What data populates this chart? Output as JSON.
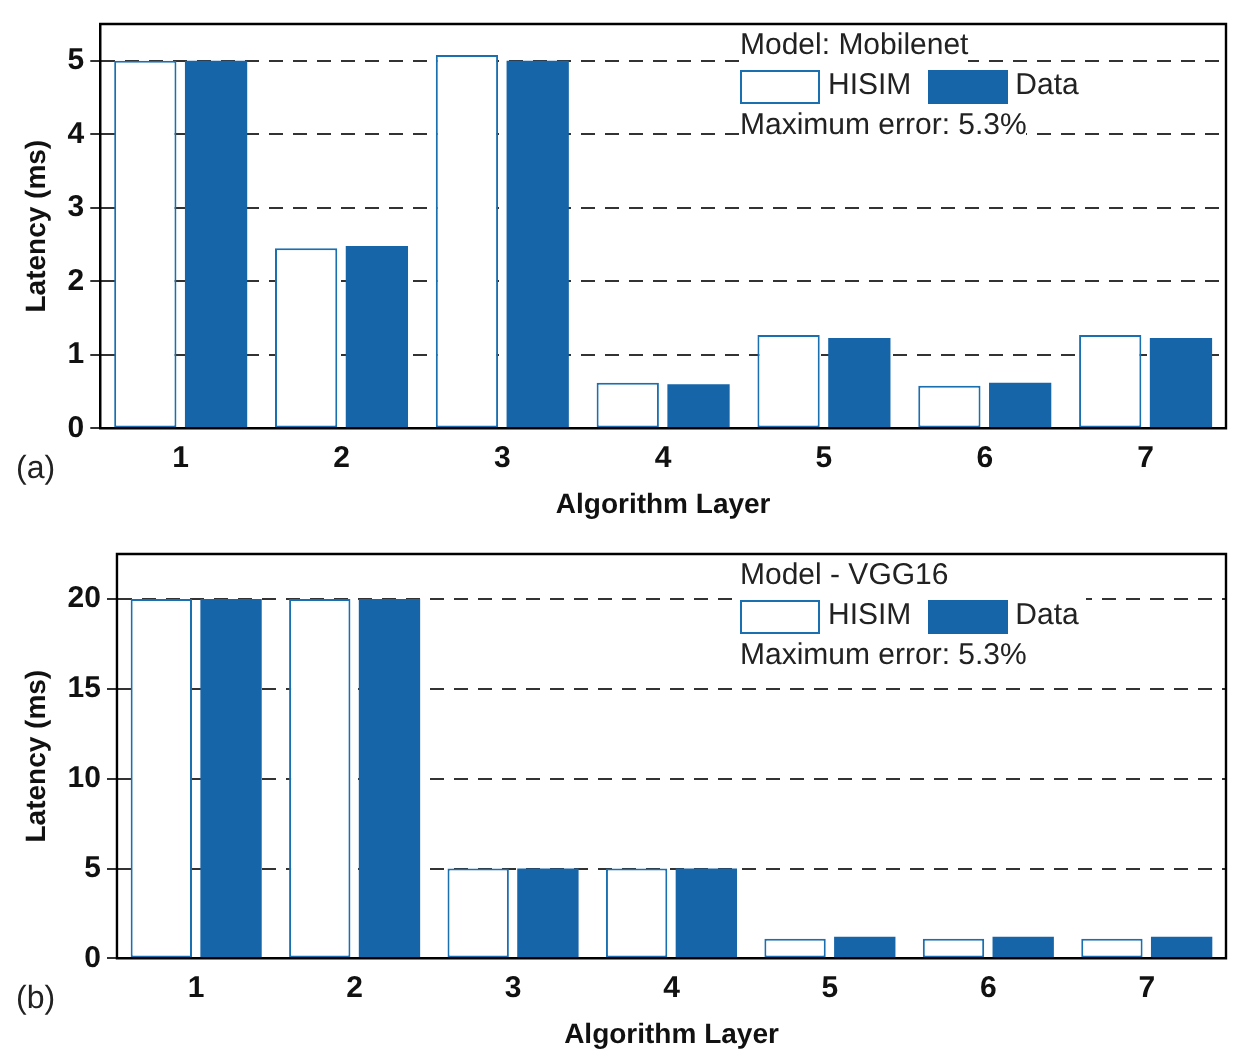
{
  "chart_data": [
    {
      "type": "bar",
      "xlabel": "Algorithm Layer",
      "ylabel": "Latency (ms)",
      "categories": [
        "1",
        "2",
        "3",
        "4",
        "5",
        "6",
        "7"
      ],
      "series": [
        {
          "name": "HISIM",
          "color": "#ffffff",
          "values": [
            5.0,
            2.45,
            5.08,
            0.62,
            1.27,
            0.58,
            1.27
          ]
        },
        {
          "name": "Data",
          "color": "#1565a8",
          "values": [
            5.0,
            2.48,
            5.0,
            0.6,
            1.23,
            0.62,
            1.23
          ]
        }
      ],
      "ylim": [
        0,
        5.5
      ],
      "yticks": [
        0,
        1,
        2,
        3,
        4,
        5
      ],
      "grid": "y",
      "legend": "top right",
      "annotations": [
        "Model: Mobilenet",
        "Maximum error: 5.3%",
        "(a)"
      ]
    },
    {
      "type": "bar",
      "xlabel": "Algorithm Layer",
      "ylabel": "Latency (ms)",
      "categories": [
        "1",
        "2",
        "3",
        "4",
        "5",
        "6",
        "7"
      ],
      "series": [
        {
          "name": "HISIM",
          "color": "#ffffff",
          "values": [
            20,
            20,
            5,
            5,
            1.1,
            1.1,
            1.1
          ]
        },
        {
          "name": "Data",
          "color": "#1565a8",
          "values": [
            20,
            20,
            5,
            5,
            1.2,
            1.2,
            1.2
          ]
        }
      ],
      "ylim": [
        0,
        22.5
      ],
      "yticks": [
        0,
        5,
        10,
        15,
        20
      ],
      "grid": "y",
      "legend": "top right",
      "annotations": [
        "Model - VGG16",
        "Maximum error: 5.3%",
        "(b)"
      ]
    }
  ]
}
